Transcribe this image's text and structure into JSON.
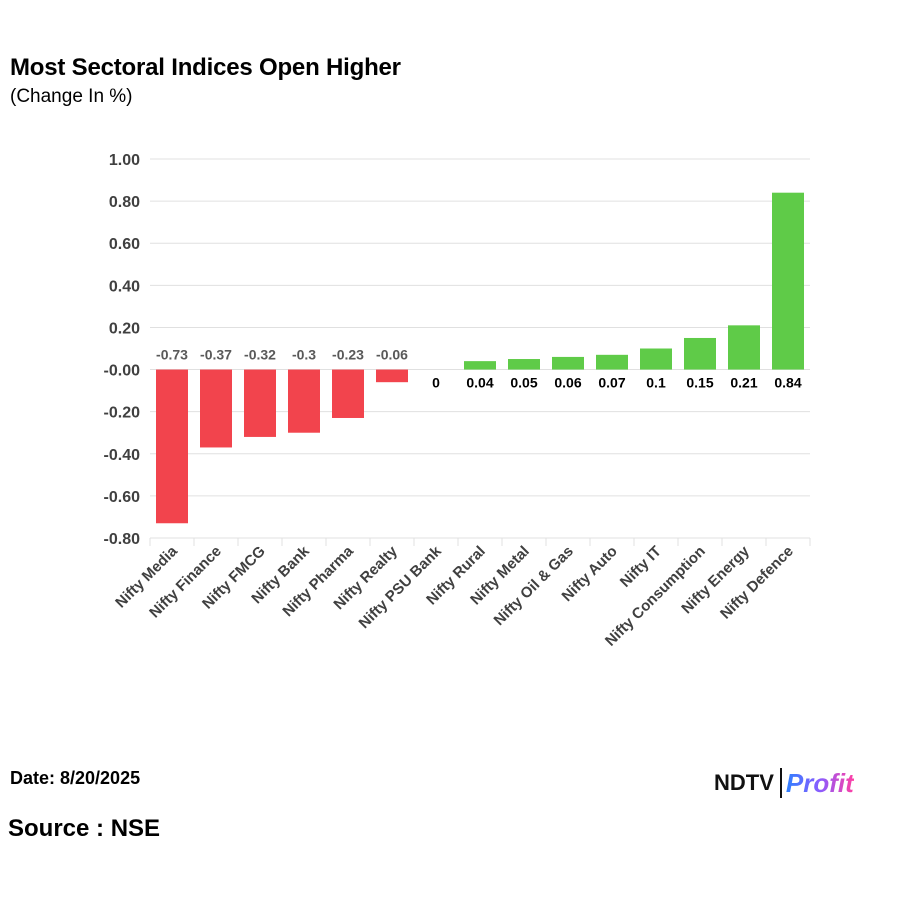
{
  "header": {
    "title": "Most Sectoral Indices Open Higher",
    "subtitle": "(Change In %)"
  },
  "footer": {
    "date": "Date: 8/20/2025",
    "source": "Source : NSE"
  },
  "logo": {
    "left": "NDTV",
    "right": "Profit"
  },
  "colors": {
    "negative": "#f2444d",
    "positive": "#5fcb48",
    "grid": "#e0e0e0"
  },
  "chart_data": {
    "type": "bar",
    "title": "Most Sectoral Indices Open Higher",
    "subtitle": "(Change In %)",
    "ylabel": "",
    "xlabel": "",
    "ylim": [
      -0.8,
      1.0
    ],
    "yticks": [
      1.0,
      0.8,
      0.6,
      0.4,
      0.2,
      0.0,
      -0.2,
      -0.4,
      -0.6,
      -0.8
    ],
    "ytick_labels": [
      "1.00",
      "0.80",
      "0.60",
      "0.40",
      "0.20",
      "-0.00",
      "-0.20",
      "-0.40",
      "-0.60",
      "-0.80"
    ],
    "grid": true,
    "legend": "none",
    "categories": [
      "Nifty Media",
      "Nifty Finance",
      "Nifty FMCG",
      "Nifty Bank",
      "Nifty Pharma",
      "Nifty Realty",
      "Nifty PSU Bank",
      "Nifty Rural",
      "Nifty Metal",
      "Nifty Oil & Gas",
      "Nifty Auto",
      "Nifty IT",
      "Nifty Consumption",
      "Nifty Energy",
      "Nifty Defence"
    ],
    "values": [
      -0.73,
      -0.37,
      -0.32,
      -0.3,
      -0.23,
      -0.06,
      0,
      0.04,
      0.05,
      0.06,
      0.07,
      0.1,
      0.15,
      0.21,
      0.84
    ],
    "value_labels": [
      "-0.73",
      "-0.37",
      "-0.32",
      "-0.3",
      "-0.23",
      "-0.06",
      "0",
      "0.04",
      "0.05",
      "0.06",
      "0.07",
      "0.1",
      "0.15",
      "0.21",
      "0.84"
    ]
  }
}
